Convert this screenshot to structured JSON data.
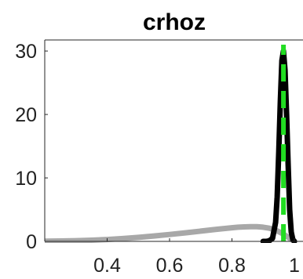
{
  "chart_data": {
    "type": "line",
    "title": "crhoz",
    "xlabel": "",
    "ylabel": "",
    "xlim": [
      0.2,
      1.0
    ],
    "ylim": [
      0,
      31
    ],
    "x_ticks": [
      0.4,
      0.6,
      0.8,
      1
    ],
    "x_tick_labels": [
      "0.4",
      "0.6",
      "0.8",
      "1"
    ],
    "y_ticks": [
      0,
      10,
      20,
      30
    ],
    "y_tick_labels": [
      "0",
      "10",
      "20",
      "30"
    ],
    "grid": false,
    "legend": "none",
    "series": [
      {
        "style": "prior",
        "color": "#a8a8a8",
        "x": [
          0.2,
          0.25,
          0.3,
          0.35,
          0.4,
          0.45,
          0.5,
          0.55,
          0.6,
          0.65,
          0.7,
          0.75,
          0.8,
          0.82,
          0.84,
          0.86,
          0.88,
          0.9,
          0.92,
          0.94,
          0.96,
          0.98,
          1.0
        ],
        "y": [
          0.03,
          0.06,
          0.11,
          0.19,
          0.3,
          0.45,
          0.63,
          0.85,
          1.09,
          1.35,
          1.62,
          1.9,
          2.15,
          2.23,
          2.29,
          2.32,
          2.31,
          2.24,
          2.07,
          1.76,
          1.28,
          0.65,
          0.0
        ]
      },
      {
        "style": "posterior",
        "color": "#000000",
        "x": [
          0.9,
          0.91,
          0.92,
          0.93,
          0.94,
          0.945,
          0.95,
          0.955,
          0.96,
          0.965,
          0.97,
          0.975,
          0.98,
          0.985,
          0.99,
          0.995,
          1.0
        ],
        "y": [
          0.0,
          0.0,
          0.1,
          0.5,
          3.0,
          7.0,
          14.0,
          22.0,
          28.5,
          30.0,
          27.0,
          20.0,
          12.0,
          5.0,
          1.5,
          0.3,
          0.0
        ]
      },
      {
        "style": "mode",
        "color": "#22dd22",
        "x": [
          0.965,
          0.965
        ],
        "y": [
          0,
          31
        ]
      }
    ]
  }
}
